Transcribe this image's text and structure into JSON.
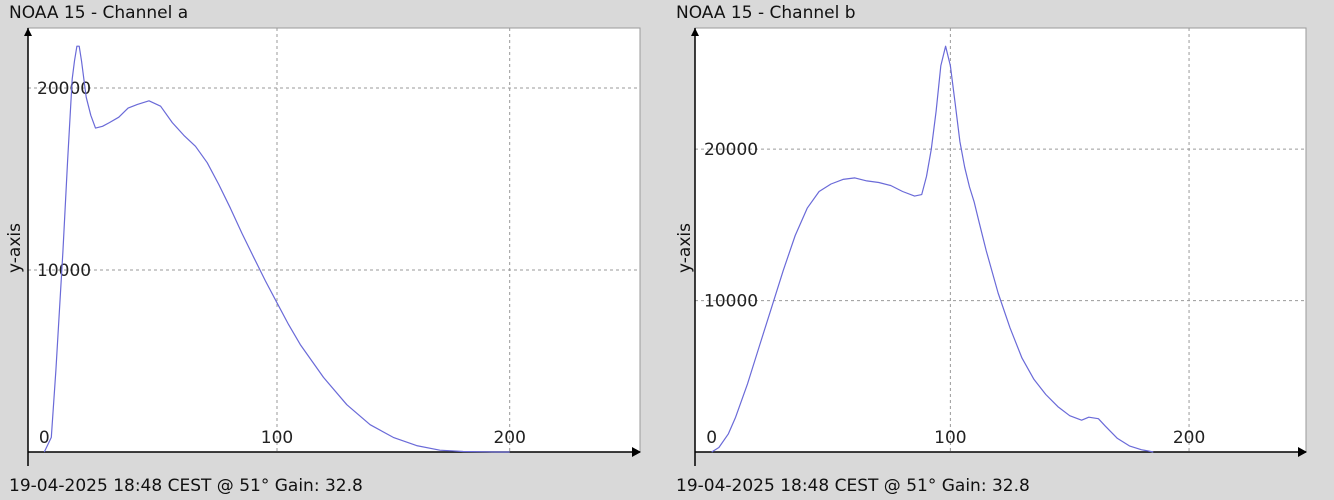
{
  "colors": {
    "series": "#6a6ad8",
    "grid": "#9a9a9a",
    "axis": "#000000",
    "plot_bg": "#ffffff",
    "page_bg": "#d9d9d9"
  },
  "panels": [
    {
      "title": "NOAA 15 - Channel a",
      "footer": "19-04-2025 18:48 CEST @ 51° Gain: 32.8"
    },
    {
      "title": "NOAA 15 - Channel b",
      "footer": "19-04-2025 18:48 CEST @ 51° Gain: 32.8"
    }
  ],
  "chart_data": [
    {
      "type": "line",
      "title": "NOAA 15 - Channel a",
      "xlabel": "",
      "ylabel": "y-axis",
      "xlim": [
        -7,
        256
      ],
      "ylim": [
        0,
        23300
      ],
      "x_ticks": [
        0,
        100,
        200
      ],
      "y_ticks": [
        10000,
        20000
      ],
      "grid": true,
      "series": [
        {
          "x": [
            0,
            3,
            5,
            8,
            10,
            12,
            13,
            14,
            15,
            16,
            18,
            20,
            22,
            25,
            28,
            32,
            36,
            40,
            45,
            50,
            55,
            60,
            65,
            70,
            75,
            80,
            85,
            90,
            95,
            100,
            105,
            110,
            115,
            120,
            130,
            140,
            150,
            160,
            170,
            180,
            190,
            195,
            200
          ],
          "y": [
            0,
            800,
            4500,
            11000,
            16000,
            20500,
            21500,
            22300,
            22300,
            21500,
            19500,
            18500,
            17800,
            17900,
            18100,
            18400,
            18900,
            19100,
            19300,
            19000,
            18100,
            17400,
            16800,
            15900,
            14700,
            13400,
            12000,
            10700,
            9400,
            8200,
            7000,
            5900,
            5000,
            4100,
            2600,
            1500,
            800,
            350,
            100,
            30,
            10,
            0,
            0
          ]
        }
      ]
    },
    {
      "type": "line",
      "title": "NOAA 15 - Channel b",
      "xlabel": "",
      "ylabel": "y-axis",
      "xlim": [
        -7,
        249
      ],
      "ylim": [
        0,
        28000
      ],
      "x_ticks": [
        0,
        100,
        200
      ],
      "y_ticks": [
        10000,
        20000
      ],
      "grid": true,
      "series": [
        {
          "x": [
            0,
            3,
            7,
            10,
            15,
            20,
            25,
            30,
            35,
            40,
            45,
            50,
            55,
            60,
            65,
            70,
            75,
            80,
            85,
            88,
            90,
            92,
            94,
            96,
            98,
            100,
            102,
            104,
            106,
            108,
            110,
            112,
            115,
            120,
            125,
            130,
            135,
            140,
            145,
            150,
            155,
            158,
            162,
            165,
            170,
            175,
            180,
            185
          ],
          "y": [
            0,
            300,
            1200,
            2300,
            4500,
            7000,
            9500,
            12000,
            14300,
            16100,
            17200,
            17700,
            18000,
            18100,
            17900,
            17800,
            17600,
            17200,
            16900,
            17000,
            18200,
            20000,
            22500,
            25500,
            26800,
            25500,
            23000,
            20500,
            18800,
            17500,
            16500,
            15200,
            13300,
            10500,
            8200,
            6200,
            4800,
            3800,
            3000,
            2400,
            2100,
            2300,
            2200,
            1700,
            900,
            400,
            150,
            0
          ]
        }
      ]
    }
  ]
}
